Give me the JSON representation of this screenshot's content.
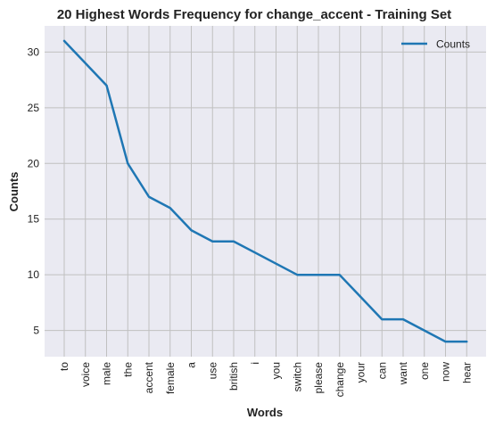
{
  "chart_data": {
    "type": "line",
    "title": "20 Highest Words Frequency for change_accent - Training Set",
    "xlabel": "Words",
    "ylabel": "Counts",
    "categories": [
      "to",
      "voice",
      "male",
      "the",
      "accent",
      "female",
      "a",
      "use",
      "british",
      "i",
      "you",
      "switch",
      "please",
      "change",
      "your",
      "can",
      "want",
      "one",
      "now",
      "hear"
    ],
    "series": [
      {
        "name": "Counts",
        "values": [
          31,
          29,
          27,
          20,
          17,
          16,
          14,
          13,
          13,
          12,
          11,
          10,
          10,
          10,
          8,
          6,
          6,
          5,
          4,
          4
        ]
      }
    ],
    "ylim": [
      2.65,
      32.35
    ],
    "yticks": [
      5,
      10,
      15,
      20,
      25,
      30
    ],
    "grid": true,
    "legend_position": "top-right",
    "colors": {
      "series": "#1f77b4",
      "background": "#eaeaf2",
      "grid": "#c0c0c0"
    }
  }
}
